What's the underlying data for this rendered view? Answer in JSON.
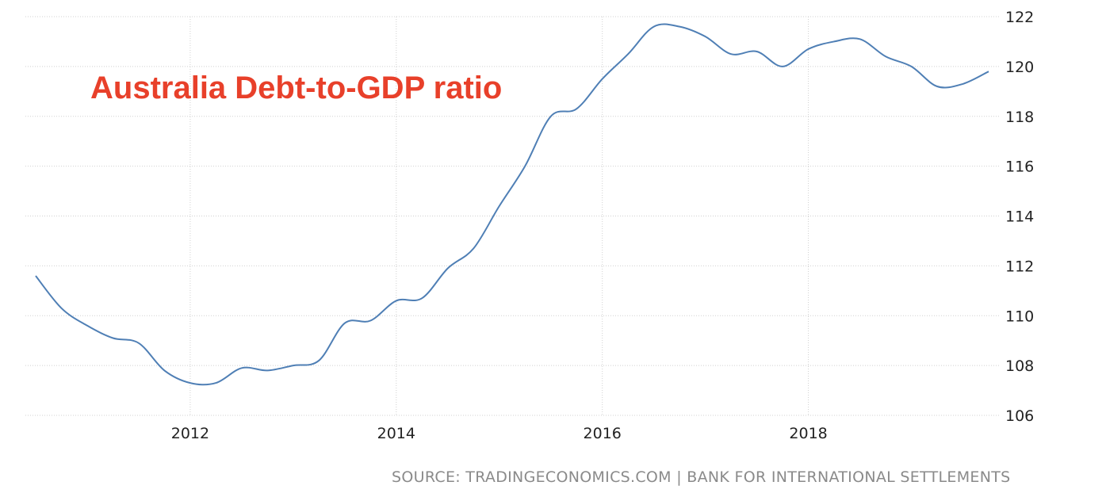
{
  "source_text": "SOURCE: TRADINGECONOMICS.COM | BANK FOR INTERNATIONAL SETTLEMENTS",
  "colors": {
    "line": "#4f7fb5",
    "title": "#e8402a",
    "grid": "#d0d0d0"
  },
  "chart_data": {
    "type": "line",
    "title": "Australia Debt-to-GDP ratio",
    "xlabel": "",
    "ylabel": "",
    "xlim": [
      2010.4,
      2019.85
    ],
    "ylim": [
      106,
      122
    ],
    "x_ticks": [
      2012,
      2014,
      2016,
      2018
    ],
    "y_ticks": [
      106,
      108,
      110,
      112,
      114,
      116,
      118,
      120,
      122
    ],
    "y_axis_side": "right",
    "grid": true,
    "series": [
      {
        "values": [
          {
            "x": 2010.5,
            "y": 111.6
          },
          {
            "x": 2010.75,
            "y": 110.3
          },
          {
            "x": 2011.0,
            "y": 109.6
          },
          {
            "x": 2011.25,
            "y": 109.1
          },
          {
            "x": 2011.5,
            "y": 108.9
          },
          {
            "x": 2011.75,
            "y": 107.8
          },
          {
            "x": 2012.0,
            "y": 107.3
          },
          {
            "x": 2012.25,
            "y": 107.3
          },
          {
            "x": 2012.5,
            "y": 107.9
          },
          {
            "x": 2012.75,
            "y": 107.8
          },
          {
            "x": 2013.0,
            "y": 108.0
          },
          {
            "x": 2013.25,
            "y": 108.2
          },
          {
            "x": 2013.5,
            "y": 109.7
          },
          {
            "x": 2013.75,
            "y": 109.8
          },
          {
            "x": 2014.0,
            "y": 110.6
          },
          {
            "x": 2014.25,
            "y": 110.7
          },
          {
            "x": 2014.5,
            "y": 111.9
          },
          {
            "x": 2014.75,
            "y": 112.7
          },
          {
            "x": 2015.0,
            "y": 114.4
          },
          {
            "x": 2015.25,
            "y": 116.0
          },
          {
            "x": 2015.5,
            "y": 118.0
          },
          {
            "x": 2015.75,
            "y": 118.3
          },
          {
            "x": 2016.0,
            "y": 119.5
          },
          {
            "x": 2016.25,
            "y": 120.5
          },
          {
            "x": 2016.5,
            "y": 121.6
          },
          {
            "x": 2016.75,
            "y": 121.6
          },
          {
            "x": 2017.0,
            "y": 121.2
          },
          {
            "x": 2017.25,
            "y": 120.5
          },
          {
            "x": 2017.5,
            "y": 120.6
          },
          {
            "x": 2017.75,
            "y": 120.0
          },
          {
            "x": 2018.0,
            "y": 120.7
          },
          {
            "x": 2018.25,
            "y": 121.0
          },
          {
            "x": 2018.5,
            "y": 121.1
          },
          {
            "x": 2018.75,
            "y": 120.4
          },
          {
            "x": 2019.0,
            "y": 120.0
          },
          {
            "x": 2019.25,
            "y": 119.2
          },
          {
            "x": 2019.5,
            "y": 119.3
          },
          {
            "x": 2019.75,
            "y": 119.8
          }
        ]
      }
    ]
  }
}
